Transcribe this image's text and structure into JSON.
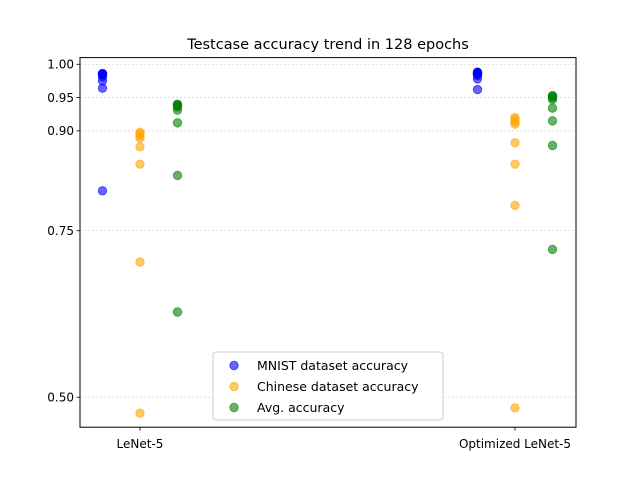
{
  "chart_data": {
    "type": "scatter",
    "title": "Testcase accuracy trend in 128 epochs",
    "xlabel": "",
    "ylabel": "",
    "categories": [
      "LeNet-5",
      "Optimized LeNet-5"
    ],
    "yticks": [
      0.5,
      0.75,
      0.9,
      0.95,
      1.0
    ],
    "ytick_labels": [
      "0.50",
      "0.75",
      "0.90",
      "0.95",
      "1.00"
    ],
    "ylim": [
      0.455,
      1.01
    ],
    "grid": "y-dashed",
    "legend_position": "bottom-center",
    "series": [
      {
        "name": "MNIST dataset accuracy",
        "color": "#0000ff",
        "offset": -1,
        "groups": [
          [
            0.81,
            0.964,
            0.975,
            0.981,
            0.984,
            0.985,
            0.986,
            0.986
          ],
          [
            0.962,
            0.978,
            0.983,
            0.985,
            0.986,
            0.987,
            0.988,
            0.988
          ]
        ]
      },
      {
        "name": "Chinese dataset accuracy",
        "color": "#ffa500",
        "offset": 0,
        "groups": [
          [
            0.476,
            0.703,
            0.85,
            0.876,
            0.889,
            0.893,
            0.896,
            0.898
          ],
          [
            0.484,
            0.788,
            0.85,
            0.882,
            0.91,
            0.913,
            0.917,
            0.92
          ]
        ]
      },
      {
        "name": "Avg. accuracy",
        "color": "#008000",
        "offset": 1,
        "groups": [
          [
            0.628,
            0.833,
            0.912,
            0.931,
            0.936,
            0.938,
            0.939,
            0.94
          ],
          [
            0.722,
            0.878,
            0.915,
            0.934,
            0.947,
            0.95,
            0.952,
            0.953
          ]
        ]
      }
    ]
  }
}
